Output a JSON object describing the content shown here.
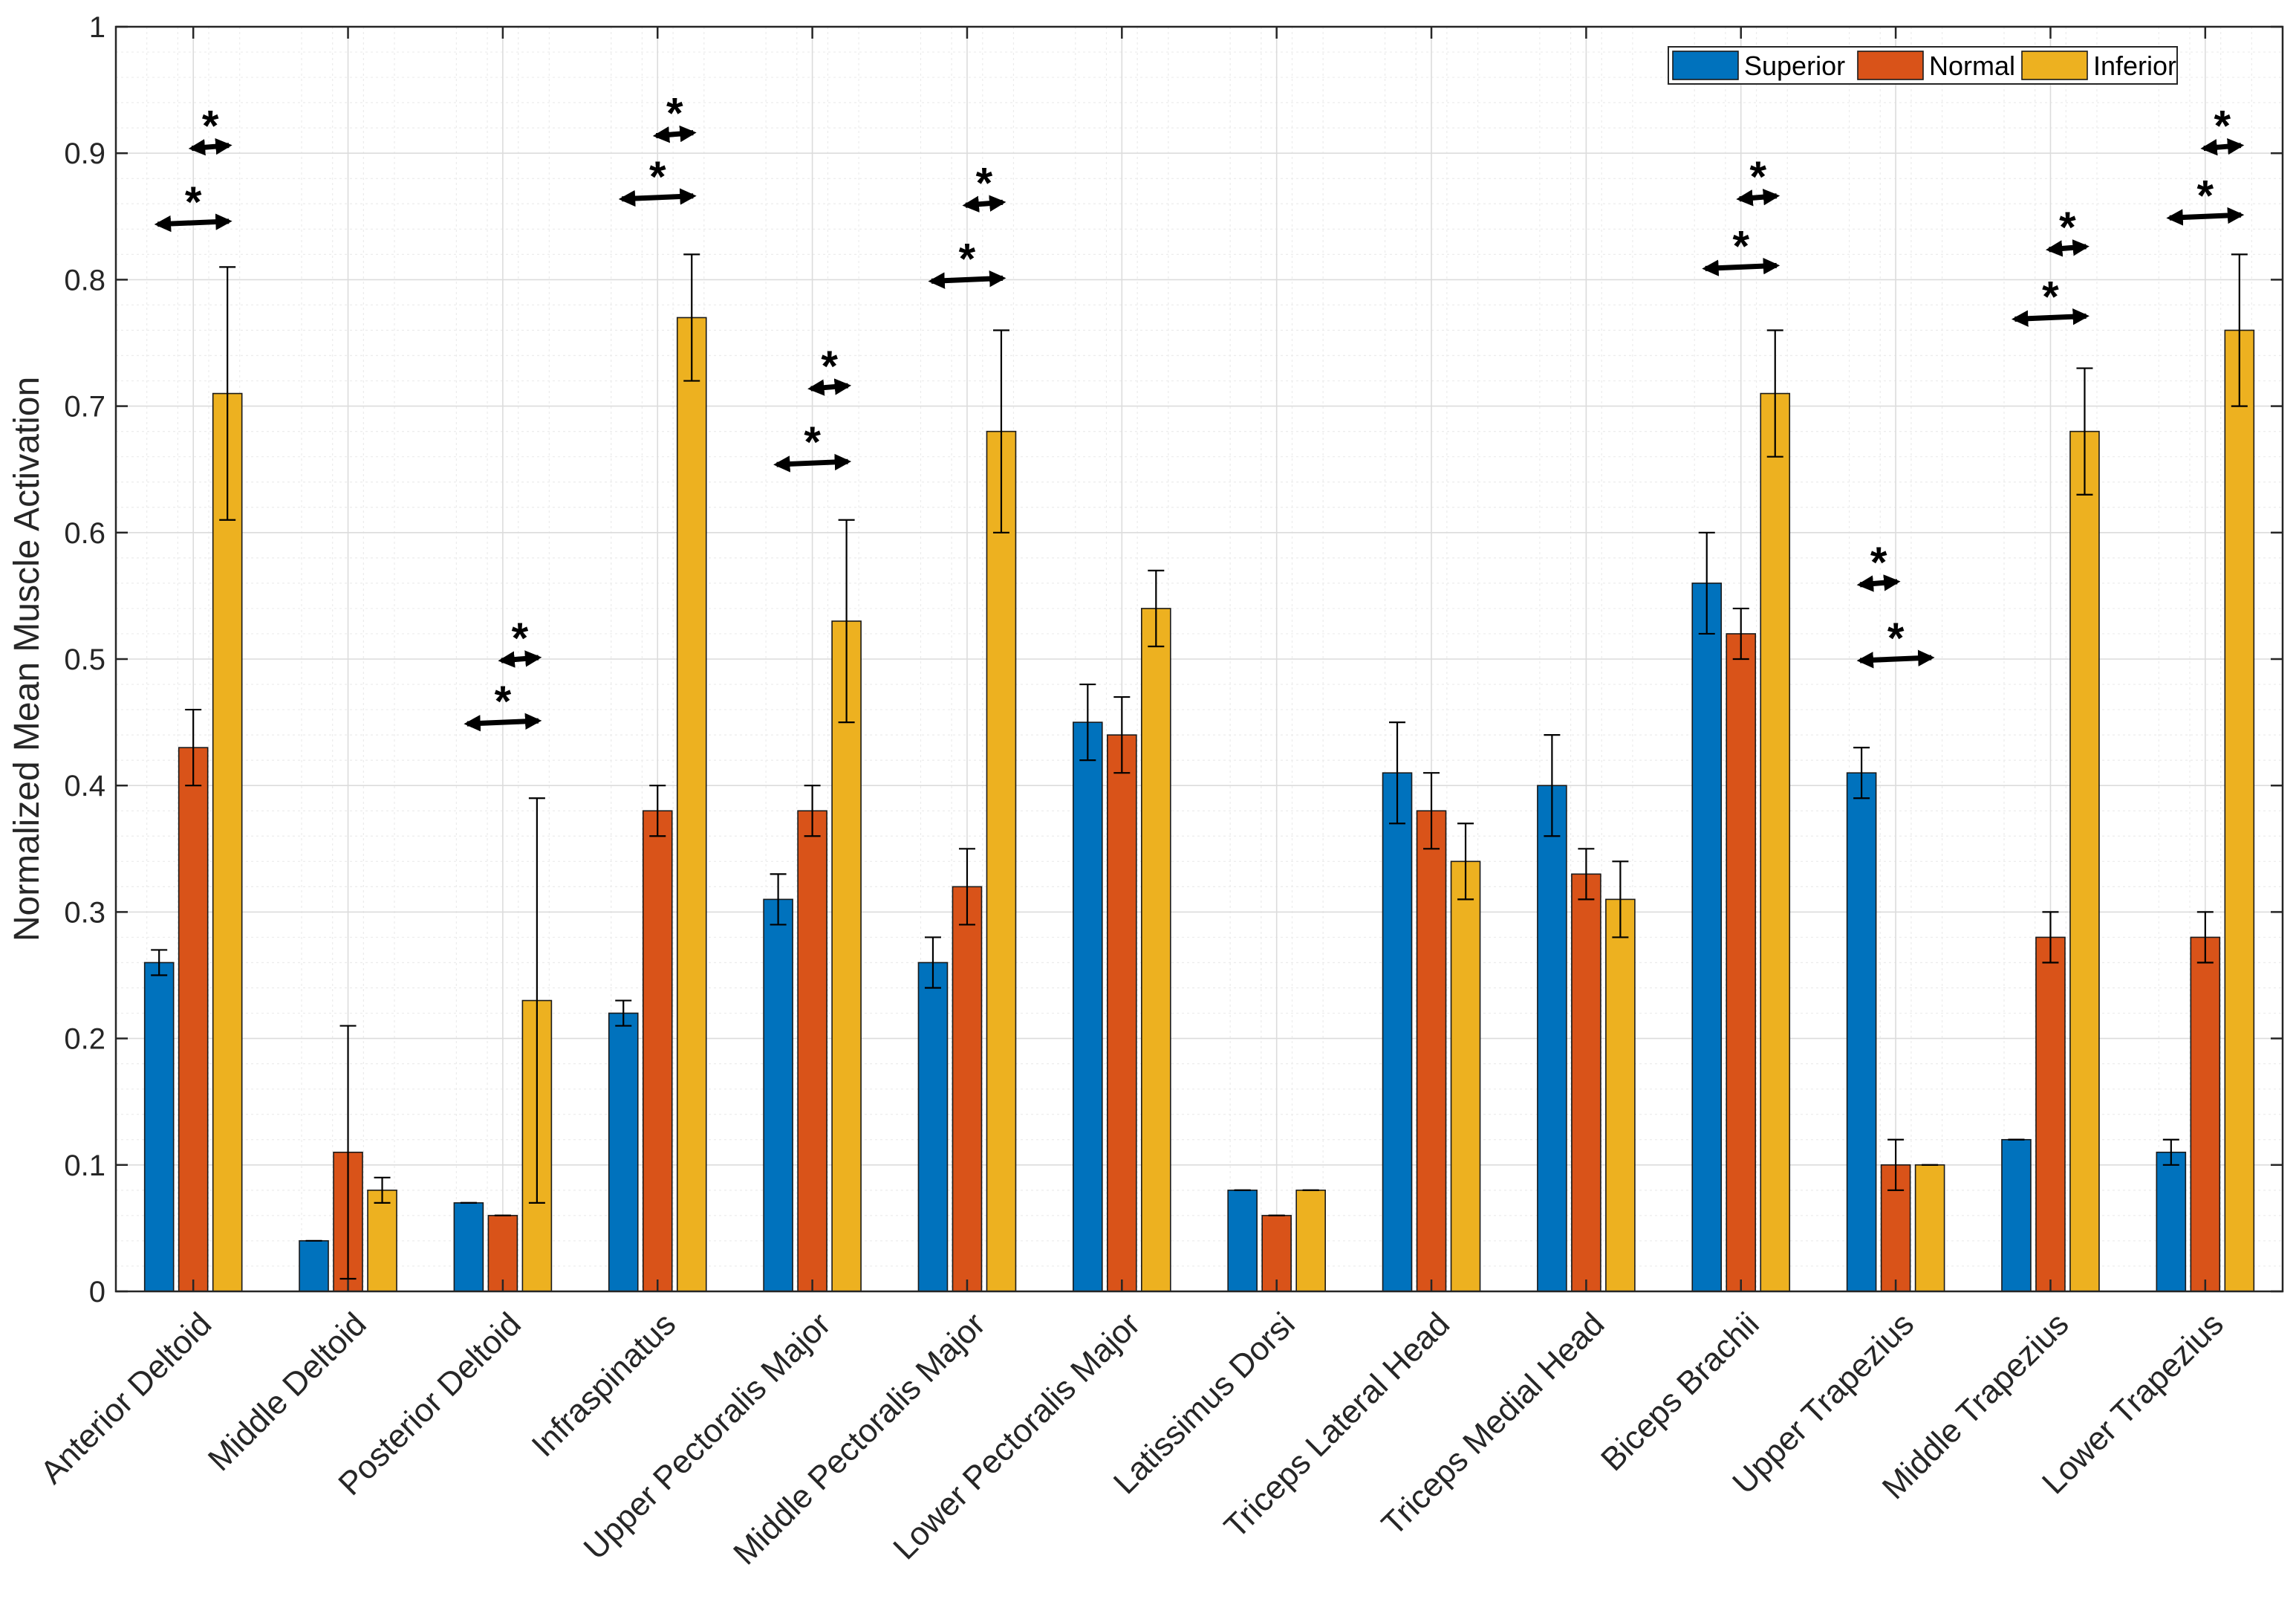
{
  "chart_data": {
    "type": "bar",
    "title": "",
    "xlabel": "",
    "ylabel": "Normalized Mean Muscle Activation",
    "ylim": [
      0,
      1
    ],
    "yticks": [
      0,
      0.1,
      0.2,
      0.3,
      0.4,
      0.5,
      0.6,
      0.7,
      0.8,
      0.9,
      1
    ],
    "ytick_labels": [
      "0",
      "0.1",
      "0.2",
      "0.3",
      "0.4",
      "0.5",
      "0.6",
      "0.7",
      "0.8",
      "0.9",
      "1"
    ],
    "grid": true,
    "legend_position": "top-right",
    "categories": [
      "Anterior Deltoid",
      "Middle Deltoid",
      "Posterior Deltoid",
      "Infraspinatus",
      "Upper Pectoralis Major",
      "Middle Pectoralis Major",
      "Lower Pectoralis Major",
      "Latissimus Dorsi",
      "Triceps Lateral Head",
      "Triceps Medial Head",
      "Biceps Brachii",
      "Upper Trapezius",
      "Middle Trapezius",
      "Lower Trapezius"
    ],
    "series": [
      {
        "name": "Superior",
        "color": "#0072BD",
        "values": [
          0.26,
          0.04,
          0.07,
          0.22,
          0.31,
          0.26,
          0.45,
          0.08,
          0.41,
          0.4,
          0.56,
          0.41,
          0.12,
          0.11
        ],
        "err_low": [
          0.25,
          0.04,
          0.07,
          0.21,
          0.29,
          0.24,
          0.42,
          0.08,
          0.37,
          0.36,
          0.52,
          0.39,
          0.12,
          0.1
        ],
        "err_high": [
          0.27,
          0.04,
          0.07,
          0.23,
          0.33,
          0.28,
          0.48,
          0.08,
          0.45,
          0.44,
          0.6,
          0.43,
          0.12,
          0.12
        ]
      },
      {
        "name": "Normal",
        "color": "#D95319",
        "values": [
          0.43,
          0.11,
          0.06,
          0.38,
          0.38,
          0.32,
          0.44,
          0.06,
          0.38,
          0.33,
          0.52,
          0.1,
          0.28,
          0.28
        ],
        "err_low": [
          0.4,
          0.01,
          0.06,
          0.36,
          0.36,
          0.29,
          0.41,
          0.06,
          0.35,
          0.31,
          0.5,
          0.08,
          0.26,
          0.26
        ],
        "err_high": [
          0.46,
          0.21,
          0.06,
          0.4,
          0.4,
          0.35,
          0.47,
          0.06,
          0.41,
          0.35,
          0.54,
          0.12,
          0.3,
          0.3
        ]
      },
      {
        "name": "Inferior",
        "color": "#EDB120",
        "values": [
          0.71,
          0.08,
          0.23,
          0.77,
          0.53,
          0.68,
          0.54,
          0.08,
          0.34,
          0.31,
          0.71,
          0.1,
          0.68,
          0.76
        ],
        "err_low": [
          0.61,
          0.07,
          0.07,
          0.72,
          0.45,
          0.6,
          0.51,
          0.08,
          0.31,
          0.28,
          0.66,
          0.1,
          0.63,
          0.7
        ],
        "err_high": [
          0.81,
          0.09,
          0.39,
          0.82,
          0.61,
          0.76,
          0.57,
          0.08,
          0.37,
          0.34,
          0.76,
          0.1,
          0.73,
          0.82
        ]
      }
    ],
    "significance": [
      {
        "category": 0,
        "from": 0,
        "to": 2,
        "y": 0.845,
        "label": "*"
      },
      {
        "category": 0,
        "from": 1,
        "to": 2,
        "y": 0.905,
        "label": "*"
      },
      {
        "category": 2,
        "from": 0,
        "to": 2,
        "y": 0.45,
        "label": "*"
      },
      {
        "category": 2,
        "from": 1,
        "to": 2,
        "y": 0.5,
        "label": "*"
      },
      {
        "category": 3,
        "from": 0,
        "to": 2,
        "y": 0.865,
        "label": "*"
      },
      {
        "category": 3,
        "from": 1,
        "to": 2,
        "y": 0.915,
        "label": "*"
      },
      {
        "category": 4,
        "from": 0,
        "to": 2,
        "y": 0.655,
        "label": "*"
      },
      {
        "category": 4,
        "from": 1,
        "to": 2,
        "y": 0.715,
        "label": "*"
      },
      {
        "category": 5,
        "from": 0,
        "to": 2,
        "y": 0.8,
        "label": "*"
      },
      {
        "category": 5,
        "from": 1,
        "to": 2,
        "y": 0.86,
        "label": "*"
      },
      {
        "category": 10,
        "from": 0,
        "to": 2,
        "y": 0.81,
        "label": "*"
      },
      {
        "category": 10,
        "from": 1,
        "to": 2,
        "y": 0.865,
        "label": "*"
      },
      {
        "category": 11,
        "from": 0,
        "to": 2,
        "y": 0.5,
        "label": "*"
      },
      {
        "category": 11,
        "from": 0,
        "to": 1,
        "y": 0.56,
        "label": "*"
      },
      {
        "category": 12,
        "from": 0,
        "to": 2,
        "y": 0.77,
        "label": "*"
      },
      {
        "category": 12,
        "from": 1,
        "to": 2,
        "y": 0.825,
        "label": "*"
      },
      {
        "category": 13,
        "from": 0,
        "to": 2,
        "y": 0.85,
        "label": "*"
      },
      {
        "category": 13,
        "from": 1,
        "to": 2,
        "y": 0.905,
        "label": "*"
      }
    ]
  }
}
